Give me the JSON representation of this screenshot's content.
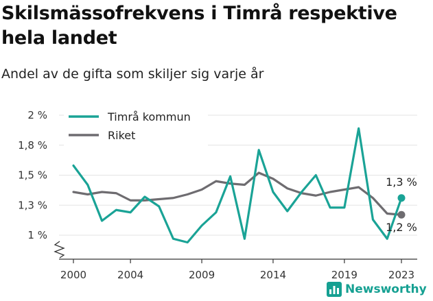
{
  "title": "Skilsmässofrekvens i Timrå respektive hela landet",
  "subtitle": "Andel av de gifta som skiljer sig varje år",
  "brand": {
    "name": "Newsworthy",
    "icon": "bar-chart-logo-icon"
  },
  "colors": {
    "timra": "#1aa396",
    "riket": "#6e6c70",
    "grid": "#e3e3e3",
    "axis": "#333333"
  },
  "chart_data": {
    "type": "line",
    "title": "Skilsmässofrekvens i Timrå respektive hela landet",
    "subtitle": "Andel av de gifta som skiljer sig varje år",
    "xlabel": "",
    "ylabel": "",
    "x": [
      2000,
      2001,
      2002,
      2003,
      2004,
      2005,
      2006,
      2007,
      2008,
      2009,
      2010,
      2011,
      2012,
      2013,
      2014,
      2015,
      2016,
      2017,
      2018,
      2019,
      2020,
      2021,
      2022,
      2023
    ],
    "x_ticks": [
      2000,
      2004,
      2009,
      2014,
      2019,
      2023
    ],
    "y_ticks": [
      {
        "value": 1.0,
        "label": "1 %"
      },
      {
        "value": 1.25,
        "label": "1,3 %"
      },
      {
        "value": 1.5,
        "label": "1,5 %"
      },
      {
        "value": 1.75,
        "label": "1,8 %"
      },
      {
        "value": 2.0,
        "label": "2 %"
      }
    ],
    "ylim": [
      0.8,
      2.0
    ],
    "y_axis_break": true,
    "grid": true,
    "legend_position": "top-left",
    "series": [
      {
        "name": "Timrå kommun",
        "key": "timra",
        "values": [
          1.58,
          1.42,
          1.12,
          1.21,
          1.19,
          1.32,
          1.24,
          0.97,
          0.94,
          1.08,
          1.19,
          1.49,
          0.97,
          1.71,
          1.36,
          1.2,
          1.36,
          1.5,
          1.23,
          1.23,
          1.89,
          1.13,
          0.97,
          1.31
        ],
        "end_label": "1,3 %"
      },
      {
        "name": "Riket",
        "key": "riket",
        "values": [
          1.36,
          1.34,
          1.36,
          1.35,
          1.29,
          1.29,
          1.3,
          1.31,
          1.34,
          1.38,
          1.45,
          1.43,
          1.42,
          1.52,
          1.47,
          1.39,
          1.35,
          1.33,
          1.36,
          1.38,
          1.4,
          1.31,
          1.18,
          1.17
        ],
        "end_label": "1,2 %"
      }
    ]
  }
}
